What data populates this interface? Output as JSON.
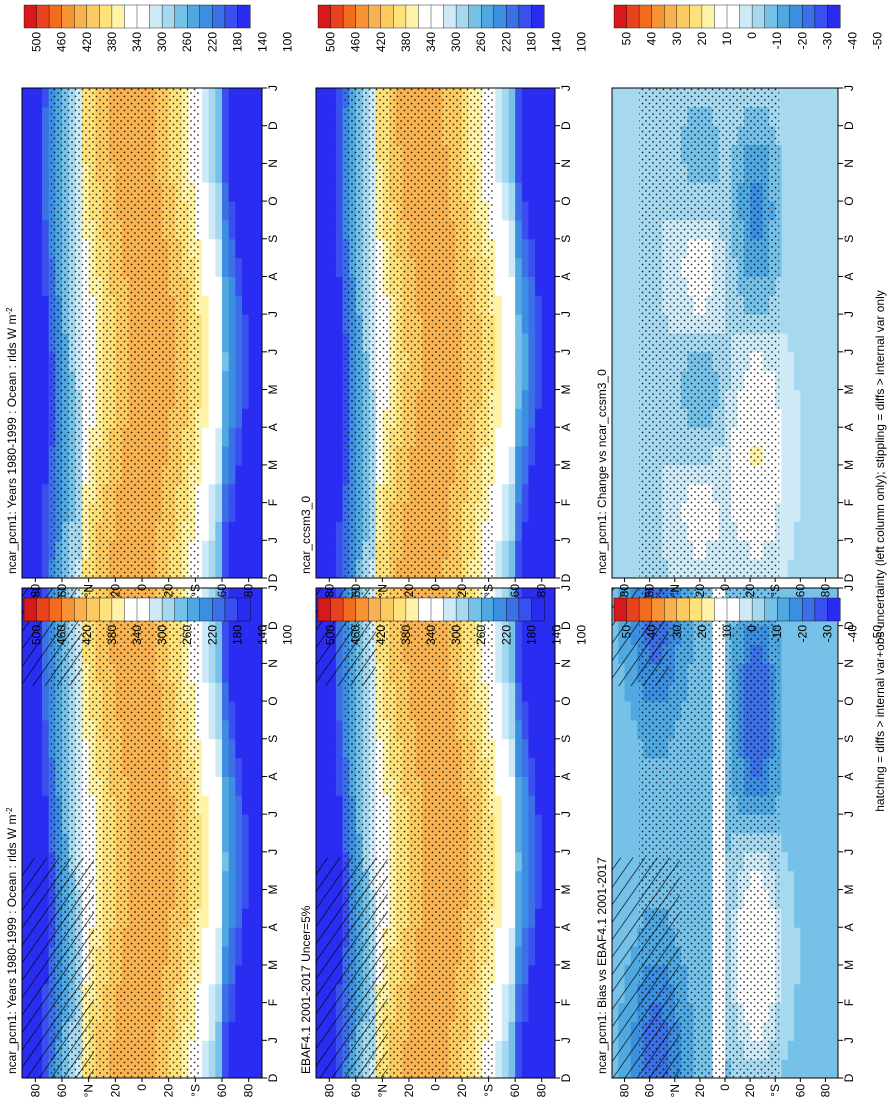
{
  "figure": {
    "footnote": "hatching = diffs > internal var+obs uncertainty (left column only); stippling = diffs > internal var only"
  },
  "colors": {
    "scale_full": [
      "#d7191c",
      "#e8431e",
      "#f26c1f",
      "#f79334",
      "#f9b251",
      "#fbcb62",
      "#fde27c",
      "#fff3a8",
      "#ffffff",
      "#ffffff",
      "#cfeaf7",
      "#a6d8ef",
      "#76c1e8",
      "#4fa9e0",
      "#3c8ee0",
      "#3c70e6",
      "#3a4ff0",
      "#2b2cf2"
    ],
    "scale_diff": [
      "#d7191c",
      "#e8431e",
      "#f26c1f",
      "#f79334",
      "#f9b251",
      "#fbcb62",
      "#fde27c",
      "#fff3a8",
      "#ffffff",
      "#ffffff",
      "#cfeaf7",
      "#a6d8ef",
      "#76c1e8",
      "#4fa9e0",
      "#3c8ee0",
      "#3c70e6",
      "#3a4ff0",
      "#2b2cf2"
    ]
  },
  "chart_data": [
    {
      "type": "heatmap",
      "id": "p1",
      "title": "ncar_pcm1: Years 1980-1999 : Ocean : rlds W m",
      "title_sup": "-2",
      "x_ticks": [
        "J",
        "F",
        "M",
        "A",
        "M",
        "J",
        "J",
        "A",
        "S",
        "O",
        "N",
        "D",
        "J"
      ],
      "x_first": "D",
      "y_ticks": [
        "80",
        "60",
        "°N",
        "20",
        "0",
        "20",
        "°S",
        "60",
        "80"
      ],
      "colorbar": [
        "500",
        "460",
        "420",
        "380",
        "340",
        "300",
        "260",
        "220",
        "180",
        "140",
        "100"
      ],
      "scale": "full",
      "hatching": true,
      "stippling": true
    },
    {
      "type": "heatmap",
      "id": "p2",
      "title": "ncar_pcm1: Years 1980-1999 : Ocean : rlds W m",
      "title_sup": "-2",
      "x_ticks": [
        "J",
        "F",
        "M",
        "A",
        "M",
        "J",
        "J",
        "A",
        "S",
        "O",
        "N",
        "D",
        "J"
      ],
      "x_first": "D",
      "y_ticks": [
        "80",
        "60",
        "°N",
        "20",
        "0",
        "20",
        "°S",
        "60",
        "80"
      ],
      "colorbar": [
        "500",
        "460",
        "420",
        "380",
        "340",
        "300",
        "260",
        "220",
        "180",
        "140",
        "100"
      ],
      "scale": "full",
      "hatching": false,
      "stippling": true
    },
    {
      "type": "heatmap",
      "id": "p3",
      "title": "EBAF4.1 2001-2017 Uncer=5%",
      "title_sup": "",
      "x_ticks": [
        "J",
        "F",
        "M",
        "A",
        "M",
        "J",
        "J",
        "A",
        "S",
        "O",
        "N",
        "D",
        "J"
      ],
      "x_first": "D",
      "y_ticks": [
        "80",
        "60",
        "°N",
        "20",
        "0",
        "20",
        "°S",
        "60",
        "80"
      ],
      "colorbar": [
        "500",
        "460",
        "420",
        "380",
        "340",
        "300",
        "260",
        "220",
        "180",
        "140",
        "100"
      ],
      "scale": "full",
      "hatching": true,
      "stippling": true
    },
    {
      "type": "heatmap",
      "id": "p4",
      "title": "ncar_ccsm3_0",
      "title_sup": "",
      "x_ticks": [
        "J",
        "F",
        "M",
        "A",
        "M",
        "J",
        "J",
        "A",
        "S",
        "O",
        "N",
        "D",
        "J"
      ],
      "x_first": "D",
      "y_ticks": [
        "80",
        "60",
        "°N",
        "20",
        "0",
        "20",
        "°S",
        "60",
        "80"
      ],
      "colorbar": [
        "500",
        "460",
        "420",
        "380",
        "340",
        "300",
        "260",
        "220",
        "180",
        "140",
        "100"
      ],
      "scale": "full",
      "hatching": false,
      "stippling": true
    },
    {
      "type": "heatmap",
      "id": "p5",
      "title": "ncar_pcm1: Bias vs EBAF4.1 2001-2017",
      "title_sup": "",
      "x_ticks": [
        "J",
        "F",
        "M",
        "A",
        "M",
        "J",
        "J",
        "A",
        "S",
        "O",
        "N",
        "D",
        "J"
      ],
      "x_first": "D",
      "y_ticks": [
        "80",
        "60",
        "°N",
        "20",
        "0",
        "20",
        "°S",
        "60",
        "80"
      ],
      "colorbar": [
        "50",
        "40",
        "30",
        "20",
        "10",
        "0",
        "-10",
        "-20",
        "-30",
        "-40",
        "-50"
      ],
      "scale": "diff",
      "hatching": true,
      "stippling": true
    },
    {
      "type": "heatmap",
      "id": "p6",
      "title": "ncar_pcm1: Change vs ncar_ccsm3_0",
      "title_sup": "",
      "x_ticks": [
        "J",
        "F",
        "M",
        "A",
        "M",
        "J",
        "J",
        "A",
        "S",
        "O",
        "N",
        "D",
        "J"
      ],
      "x_first": "D",
      "y_ticks": [
        "80",
        "60",
        "°N",
        "20",
        "0",
        "20",
        "°S",
        "60",
        "80"
      ],
      "colorbar": [
        "50",
        "40",
        "30",
        "20",
        "10",
        "0",
        "-10",
        "-20",
        "-30",
        "-40",
        "-50"
      ],
      "scale": "diff",
      "hatching": false,
      "stippling": true
    }
  ]
}
